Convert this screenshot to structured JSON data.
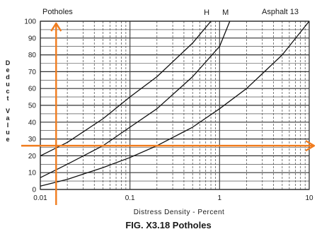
{
  "chart_data": {
    "type": "line",
    "title": "Potholes",
    "subtitle": "Asphalt 13",
    "caption": "FIG. X3.18 Potholes",
    "xlabel": "Distress Density - Percent",
    "ylabel": "Deduct Value",
    "xscale": "log",
    "xlim": [
      0.01,
      10
    ],
    "ylim": [
      0,
      100
    ],
    "xticks": [
      "0.01",
      "0.1",
      "1",
      "10"
    ],
    "yticks": [
      "0",
      "10",
      "20",
      "30",
      "40",
      "50",
      "60",
      "70",
      "80",
      "90",
      "100"
    ],
    "grid": true,
    "series": [
      {
        "name": "H",
        "x": [
          0.01,
          0.02,
          0.05,
          0.1,
          0.2,
          0.5,
          0.8
        ],
        "y": [
          20,
          28,
          42,
          55,
          67,
          87,
          100
        ]
      },
      {
        "name": "M",
        "x": [
          0.01,
          0.02,
          0.05,
          0.1,
          0.2,
          0.5,
          1,
          1.3
        ],
        "y": [
          7,
          15,
          26,
          37,
          48,
          67,
          85,
          100
        ]
      },
      {
        "name": "",
        "x": [
          0.01,
          0.02,
          0.05,
          0.1,
          0.2,
          0.5,
          1,
          2,
          5,
          10
        ],
        "y": [
          2,
          6,
          13,
          19,
          26,
          37,
          48,
          60,
          80,
          100
        ]
      }
    ],
    "annotations": {
      "color": "#f07c1e",
      "vertical_arrow_x": 0.015,
      "horizontal_arrow_y": 26
    }
  }
}
